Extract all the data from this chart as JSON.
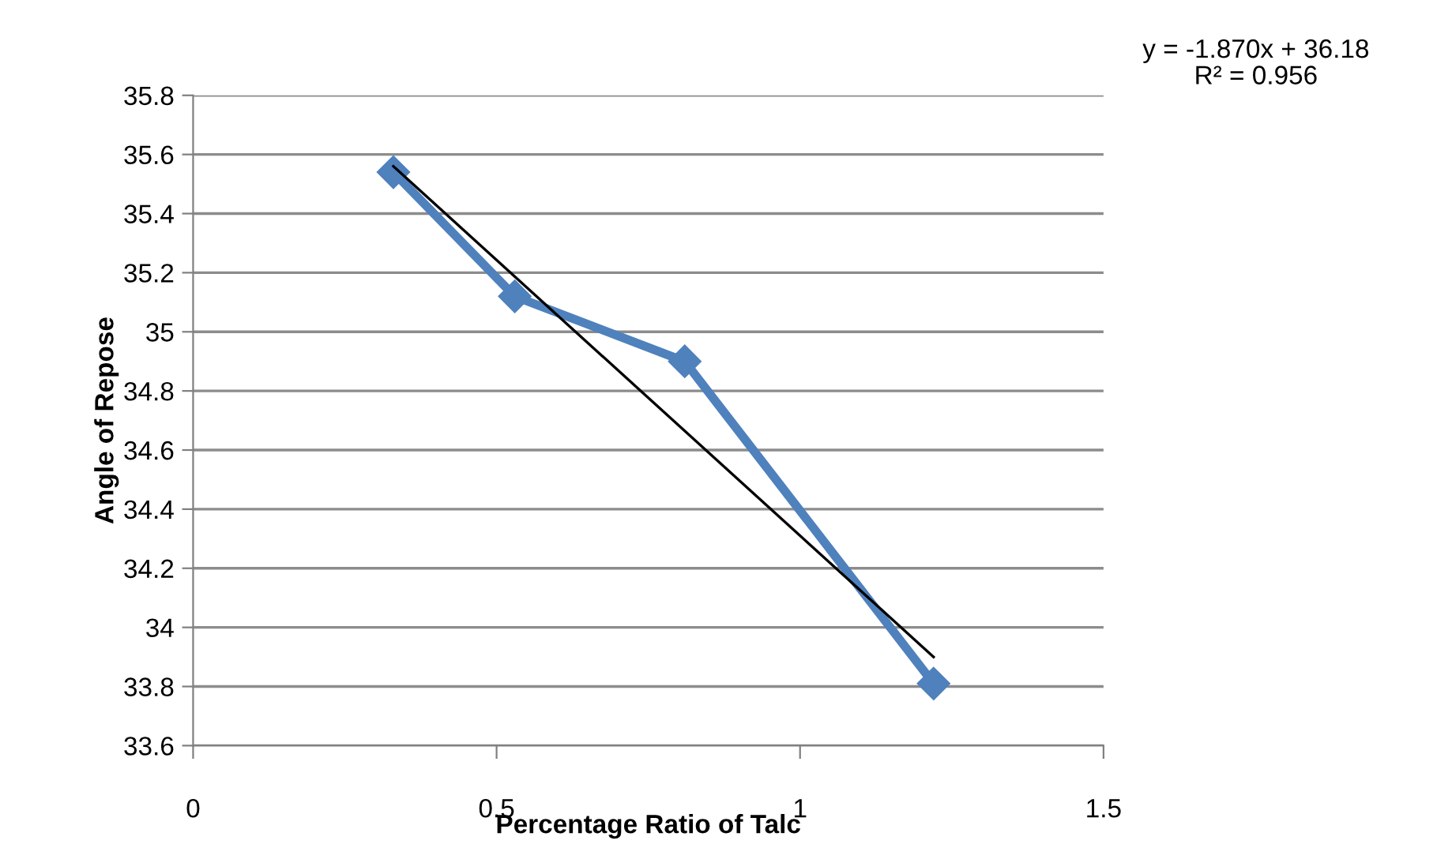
{
  "chart_data": {
    "type": "line",
    "xlabel": "Percentage Ratio of Talc",
    "ylabel": "Angle of Repose",
    "series": [
      {
        "x": [
          0.33,
          0.53,
          0.81,
          1.22
        ],
        "values": [
          35.54,
          35.12,
          34.9,
          33.81
        ],
        "color": "#4f81bd",
        "marker": "diamond"
      },
      {
        "type": "line",
        "x": [
          0.33,
          1.22
        ],
        "values": [
          35.56,
          33.9
        ],
        "color": "#000000",
        "marker": "none"
      }
    ],
    "xlim": [
      0,
      1.5
    ],
    "xticks": [
      0,
      0.5,
      1,
      1.5
    ],
    "ylim": [
      33.6,
      35.8
    ],
    "yticks": [
      33.6,
      33.8,
      34,
      34.2,
      34.4,
      34.6,
      34.8,
      35,
      35.2,
      35.4,
      35.6,
      35.8
    ],
    "grid": "y",
    "legend": false,
    "annotations": [
      "y = -1.870x + 36.18\nR² = 0.956"
    ]
  }
}
